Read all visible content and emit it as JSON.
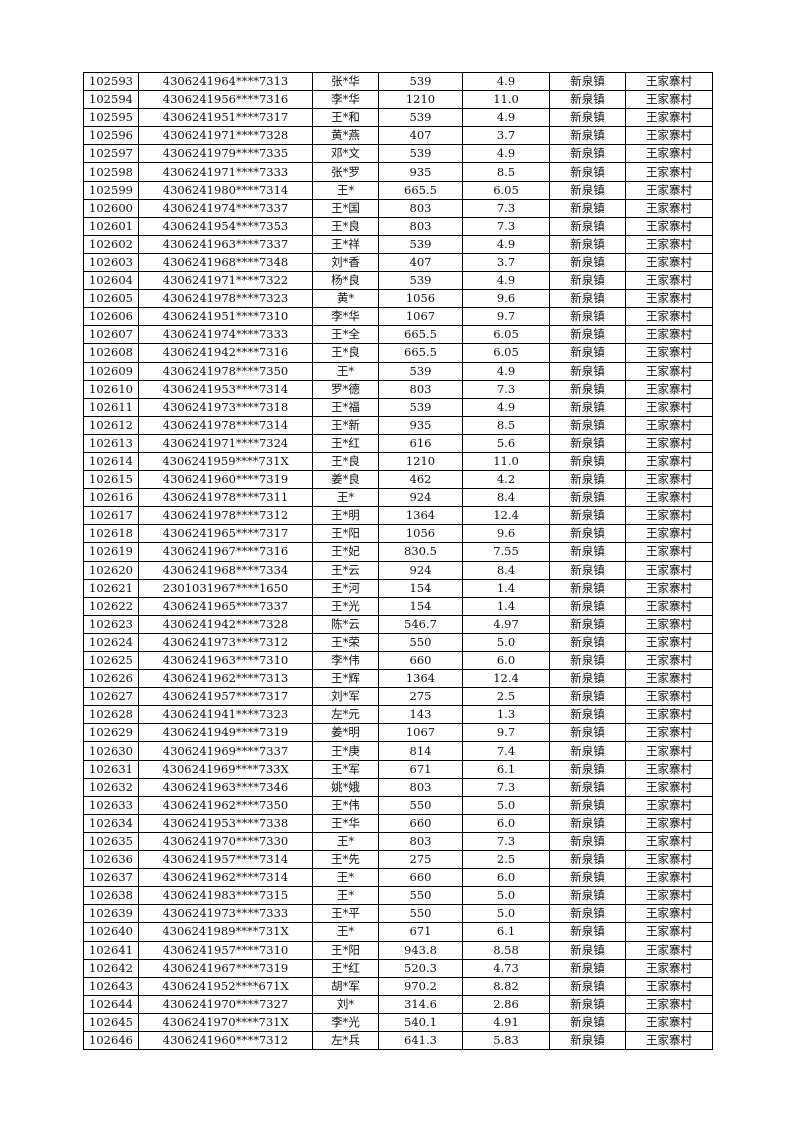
{
  "table": {
    "rows": [
      [
        "102593",
        "4306241964****7313",
        "张*华",
        "539",
        "4.9",
        "新泉镇",
        "王家寨村"
      ],
      [
        "102594",
        "4306241956****7316",
        "李*华",
        "1210",
        "11.0",
        "新泉镇",
        "王家寨村"
      ],
      [
        "102595",
        "4306241951****7317",
        "王*和",
        "539",
        "4.9",
        "新泉镇",
        "王家寨村"
      ],
      [
        "102596",
        "4306241971****7328",
        "黄*燕",
        "407",
        "3.7",
        "新泉镇",
        "王家寨村"
      ],
      [
        "102597",
        "4306241979****7335",
        "邓*文",
        "539",
        "4.9",
        "新泉镇",
        "王家寨村"
      ],
      [
        "102598",
        "4306241971****7333",
        "张*罗",
        "935",
        "8.5",
        "新泉镇",
        "王家寨村"
      ],
      [
        "102599",
        "4306241980****7314",
        "王*",
        "665.5",
        "6.05",
        "新泉镇",
        "王家寨村"
      ],
      [
        "102600",
        "4306241974****7337",
        "王*国",
        "803",
        "7.3",
        "新泉镇",
        "王家寨村"
      ],
      [
        "102601",
        "4306241954****7353",
        "王*良",
        "803",
        "7.3",
        "新泉镇",
        "王家寨村"
      ],
      [
        "102602",
        "4306241963****7337",
        "王*祥",
        "539",
        "4.9",
        "新泉镇",
        "王家寨村"
      ],
      [
        "102603",
        "4306241968****7348",
        "刘*香",
        "407",
        "3.7",
        "新泉镇",
        "王家寨村"
      ],
      [
        "102604",
        "4306241971****7322",
        "杨*良",
        "539",
        "4.9",
        "新泉镇",
        "王家寨村"
      ],
      [
        "102605",
        "4306241978****7323",
        "黄*",
        "1056",
        "9.6",
        "新泉镇",
        "王家寨村"
      ],
      [
        "102606",
        "4306241951****7310",
        "李*华",
        "1067",
        "9.7",
        "新泉镇",
        "王家寨村"
      ],
      [
        "102607",
        "4306241974****7333",
        "王*全",
        "665.5",
        "6.05",
        "新泉镇",
        "王家寨村"
      ],
      [
        "102608",
        "4306241942****7316",
        "王*良",
        "665.5",
        "6.05",
        "新泉镇",
        "王家寨村"
      ],
      [
        "102609",
        "4306241978****7350",
        "王*",
        "539",
        "4.9",
        "新泉镇",
        "王家寨村"
      ],
      [
        "102610",
        "4306241953****7314",
        "罗*德",
        "803",
        "7.3",
        "新泉镇",
        "王家寨村"
      ],
      [
        "102611",
        "4306241973****7318",
        "王*福",
        "539",
        "4.9",
        "新泉镇",
        "王家寨村"
      ],
      [
        "102612",
        "4306241978****7314",
        "王*新",
        "935",
        "8.5",
        "新泉镇",
        "王家寨村"
      ],
      [
        "102613",
        "4306241971****7324",
        "王*红",
        "616",
        "5.6",
        "新泉镇",
        "王家寨村"
      ],
      [
        "102614",
        "4306241959****731X",
        "王*良",
        "1210",
        "11.0",
        "新泉镇",
        "王家寨村"
      ],
      [
        "102615",
        "4306241960****7319",
        "姜*良",
        "462",
        "4.2",
        "新泉镇",
        "王家寨村"
      ],
      [
        "102616",
        "4306241978****7311",
        "王*",
        "924",
        "8.4",
        "新泉镇",
        "王家寨村"
      ],
      [
        "102617",
        "4306241978****7312",
        "王*明",
        "1364",
        "12.4",
        "新泉镇",
        "王家寨村"
      ],
      [
        "102618",
        "4306241965****7317",
        "王*阳",
        "1056",
        "9.6",
        "新泉镇",
        "王家寨村"
      ],
      [
        "102619",
        "4306241967****7316",
        "王*妃",
        "830.5",
        "7.55",
        "新泉镇",
        "王家寨村"
      ],
      [
        "102620",
        "4306241968****7334",
        "王*云",
        "924",
        "8.4",
        "新泉镇",
        "王家寨村"
      ],
      [
        "102621",
        "2301031967****1650",
        "王*河",
        "154",
        "1.4",
        "新泉镇",
        "王家寨村"
      ],
      [
        "102622",
        "4306241965****7337",
        "王*光",
        "154",
        "1.4",
        "新泉镇",
        "王家寨村"
      ],
      [
        "102623",
        "4306241942****7328",
        "陈*云",
        "546.7",
        "4.97",
        "新泉镇",
        "王家寨村"
      ],
      [
        "102624",
        "4306241973****7312",
        "王*荣",
        "550",
        "5.0",
        "新泉镇",
        "王家寨村"
      ],
      [
        "102625",
        "4306241963****7310",
        "李*伟",
        "660",
        "6.0",
        "新泉镇",
        "王家寨村"
      ],
      [
        "102626",
        "4306241962****7313",
        "王*辉",
        "1364",
        "12.4",
        "新泉镇",
        "王家寨村"
      ],
      [
        "102627",
        "4306241957****7317",
        "刘*军",
        "275",
        "2.5",
        "新泉镇",
        "王家寨村"
      ],
      [
        "102628",
        "4306241941****7323",
        "左*元",
        "143",
        "1.3",
        "新泉镇",
        "王家寨村"
      ],
      [
        "102629",
        "4306241949****7319",
        "姜*明",
        "1067",
        "9.7",
        "新泉镇",
        "王家寨村"
      ],
      [
        "102630",
        "4306241969****7337",
        "王*庚",
        "814",
        "7.4",
        "新泉镇",
        "王家寨村"
      ],
      [
        "102631",
        "4306241969****733X",
        "王*军",
        "671",
        "6.1",
        "新泉镇",
        "王家寨村"
      ],
      [
        "102632",
        "4306241963****7346",
        "姚*娥",
        "803",
        "7.3",
        "新泉镇",
        "王家寨村"
      ],
      [
        "102633",
        "4306241962****7350",
        "王*伟",
        "550",
        "5.0",
        "新泉镇",
        "王家寨村"
      ],
      [
        "102634",
        "4306241953****7338",
        "王*华",
        "660",
        "6.0",
        "新泉镇",
        "王家寨村"
      ],
      [
        "102635",
        "4306241970****7330",
        "王*",
        "803",
        "7.3",
        "新泉镇",
        "王家寨村"
      ],
      [
        "102636",
        "4306241957****7314",
        "王*先",
        "275",
        "2.5",
        "新泉镇",
        "王家寨村"
      ],
      [
        "102637",
        "4306241962****7314",
        "王*",
        "660",
        "6.0",
        "新泉镇",
        "王家寨村"
      ],
      [
        "102638",
        "4306241983****7315",
        "王*",
        "550",
        "5.0",
        "新泉镇",
        "王家寨村"
      ],
      [
        "102639",
        "4306241973****7333",
        "王*平",
        "550",
        "5.0",
        "新泉镇",
        "王家寨村"
      ],
      [
        "102640",
        "4306241989****731X",
        "王*",
        "671",
        "6.1",
        "新泉镇",
        "王家寨村"
      ],
      [
        "102641",
        "4306241957****7310",
        "王*阳",
        "943.8",
        "8.58",
        "新泉镇",
        "王家寨村"
      ],
      [
        "102642",
        "4306241967****7319",
        "王*红",
        "520.3",
        "4.73",
        "新泉镇",
        "王家寨村"
      ],
      [
        "102643",
        "4306241952****671X",
        "胡*军",
        "970.2",
        "8.82",
        "新泉镇",
        "王家寨村"
      ],
      [
        "102644",
        "4306241970****7327",
        "刘*",
        "314.6",
        "2.86",
        "新泉镇",
        "王家寨村"
      ],
      [
        "102645",
        "4306241970****731X",
        "李*光",
        "540.1",
        "4.91",
        "新泉镇",
        "王家寨村"
      ],
      [
        "102646",
        "4306241960****7312",
        "左*兵",
        "641.3",
        "5.83",
        "新泉镇",
        "王家寨村"
      ]
    ]
  }
}
